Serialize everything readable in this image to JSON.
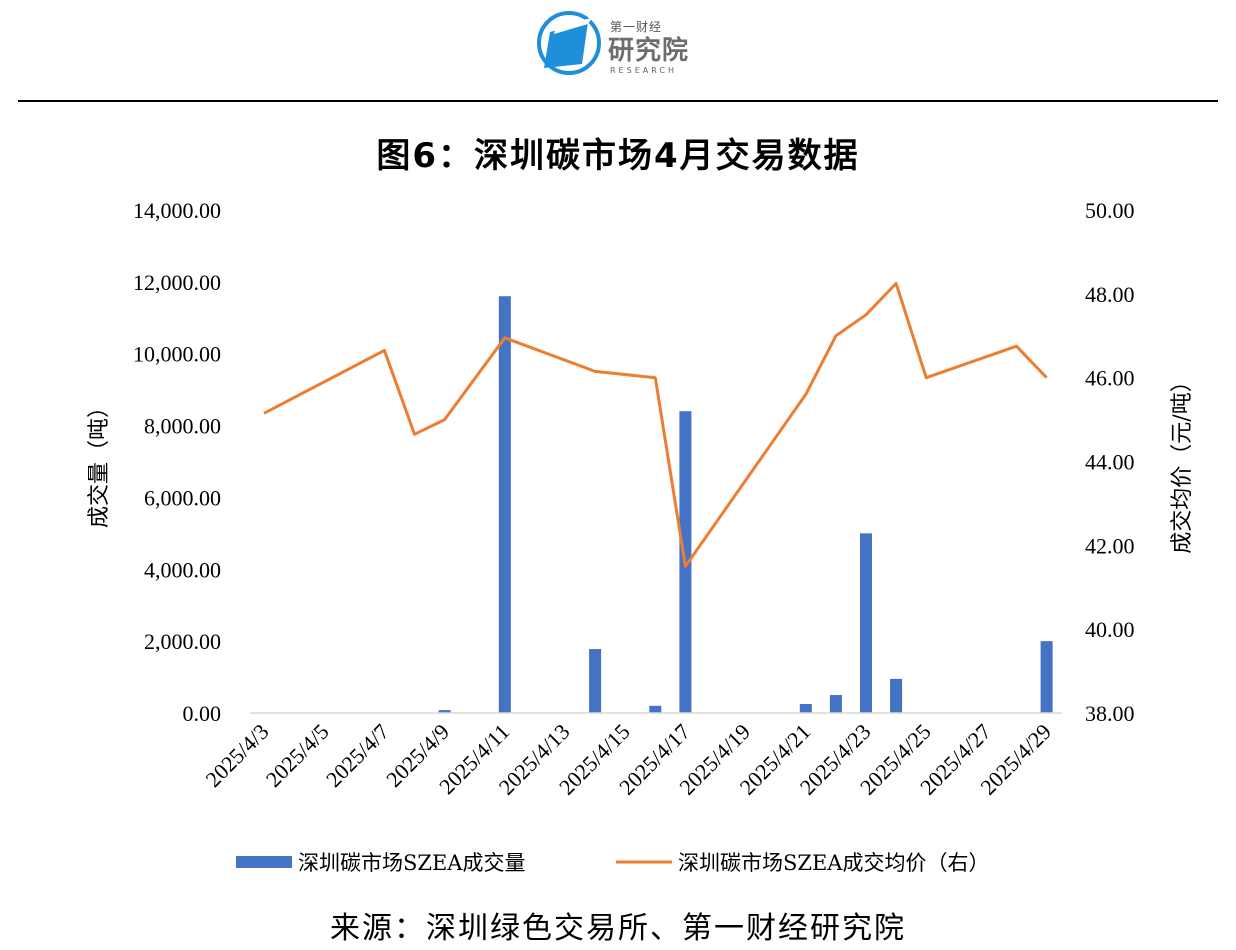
{
  "logo": {
    "top_text": "第一财经",
    "main_text": "研究院",
    "sub_text": "RESEARCH",
    "colors": {
      "blue": "#1f8fdc",
      "gray": "#6d6d6d"
    }
  },
  "chart_data": {
    "type": "bar",
    "title": "图6：深圳碳市场4月交易数据",
    "categories": [
      "2025/4/3",
      "2025/4/7",
      "2025/4/8",
      "2025/4/9",
      "2025/4/11",
      "2025/4/14",
      "2025/4/16",
      "2025/4/17",
      "2025/4/21",
      "2025/4/22",
      "2025/4/23",
      "2025/4/24",
      "2025/4/25",
      "2025/4/28",
      "2025/4/29"
    ],
    "x_tick_labels": [
      "2025/4/3",
      "2025/4/5",
      "2025/4/7",
      "2025/4/9",
      "2025/4/11",
      "2025/4/13",
      "2025/4/15",
      "2025/4/17",
      "2025/4/19",
      "2025/4/21",
      "2025/4/23",
      "2025/4/25",
      "2025/4/27",
      "2025/4/29"
    ],
    "series": [
      {
        "name": "深圳碳市场SZEA成交量",
        "type": "bar",
        "axis": "left",
        "color": "#4472c4",
        "x": [
          "2025/4/9",
          "2025/4/11",
          "2025/4/14",
          "2025/4/16",
          "2025/4/17",
          "2025/4/21",
          "2025/4/22",
          "2025/4/23",
          "2025/4/24",
          "2025/4/29"
        ],
        "values": [
          80,
          11600,
          1780,
          200,
          8400,
          250,
          500,
          5000,
          950,
          2000
        ]
      },
      {
        "name": "深圳碳市场SZEA成交均价（右）",
        "type": "line",
        "axis": "right",
        "color": "#ed7d31",
        "x": [
          "2025/4/3",
          "2025/4/7",
          "2025/4/8",
          "2025/4/9",
          "2025/4/11",
          "2025/4/14",
          "2025/4/16",
          "2025/4/17",
          "2025/4/21",
          "2025/4/22",
          "2025/4/23",
          "2025/4/24",
          "2025/4/25",
          "2025/4/28",
          "2025/4/29"
        ],
        "values": [
          45.15,
          46.65,
          44.65,
          45.0,
          46.95,
          46.15,
          46.0,
          41.5,
          45.6,
          47.0,
          47.5,
          48.25,
          46.0,
          46.75,
          46.0
        ]
      }
    ],
    "y_left": {
      "label": "成交量（吨）",
      "range": [
        0,
        14000
      ],
      "tick_labels": [
        "0.00",
        "2,000.00",
        "4,000.00",
        "6,000.00",
        "8,000.00",
        "10,000.00",
        "12,000.00",
        "14,000.00"
      ]
    },
    "y_right": {
      "label": "成交均价（元/吨）",
      "range": [
        38,
        50
      ],
      "tick_labels": [
        "38.00",
        "40.00",
        "42.00",
        "44.00",
        "46.00",
        "48.00",
        "50.00"
      ]
    },
    "grid": false,
    "legend_position": "bottom"
  },
  "source": "来源：深圳绿色交易所、第一财经研究院"
}
